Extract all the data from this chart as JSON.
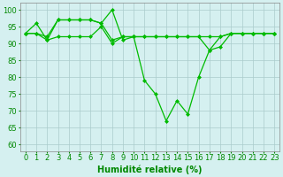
{
  "line_dip": {
    "x": [
      0,
      1,
      2,
      3,
      4,
      5,
      6,
      7,
      8,
      9,
      10,
      11,
      12,
      13,
      14,
      15,
      16,
      17,
      18,
      19,
      20,
      21,
      22,
      23
    ],
    "y": [
      93,
      96,
      91,
      97,
      97,
      97,
      97,
      96,
      100,
      91,
      92,
      79,
      75,
      67,
      73,
      69,
      80,
      88,
      89,
      93,
      93,
      93,
      93,
      93
    ],
    "color": "#00bb00",
    "marker": "D",
    "markersize": 2.0,
    "linewidth": 0.9
  },
  "line_mid": {
    "x": [
      0,
      1,
      2,
      3,
      4,
      5,
      6,
      7,
      8,
      9,
      10,
      11,
      12,
      13,
      14,
      15,
      16,
      17,
      18,
      19,
      20,
      21,
      22,
      23
    ],
    "y": [
      93,
      93,
      92,
      97,
      97,
      97,
      97,
      96,
      91,
      92,
      92,
      92,
      92,
      92,
      92,
      92,
      92,
      92,
      92,
      93,
      93,
      93,
      93,
      93
    ],
    "color": "#00bb00",
    "marker": "D",
    "markersize": 2.0,
    "linewidth": 0.9
  },
  "line_flat": {
    "x": [
      0,
      1,
      2,
      3,
      4,
      5,
      6,
      7,
      8,
      9,
      10,
      11,
      12,
      13,
      14,
      15,
      16,
      17,
      18,
      19,
      20,
      21,
      22,
      23
    ],
    "y": [
      93,
      93,
      91,
      92,
      92,
      92,
      92,
      95,
      90,
      92,
      92,
      92,
      92,
      92,
      92,
      92,
      92,
      88,
      92,
      93,
      93,
      93,
      93,
      93
    ],
    "color": "#00bb00",
    "marker": "D",
    "markersize": 2.0,
    "linewidth": 0.9
  },
  "background_color": "#d5f0f0",
  "grid_color": "#aacccc",
  "grid_linewidth": 0.5,
  "xlabel": "Humidité relative (%)",
  "xlabel_color": "#008800",
  "xlabel_fontsize": 7,
  "ylabel_ticks": [
    60,
    65,
    70,
    75,
    80,
    85,
    90,
    95,
    100
  ],
  "xlim": [
    -0.5,
    23.5
  ],
  "ylim": [
    58,
    102
  ],
  "tick_fontsize": 6,
  "tick_color": "#008800",
  "figwidth": 3.2,
  "figheight": 2.0,
  "dpi": 100
}
